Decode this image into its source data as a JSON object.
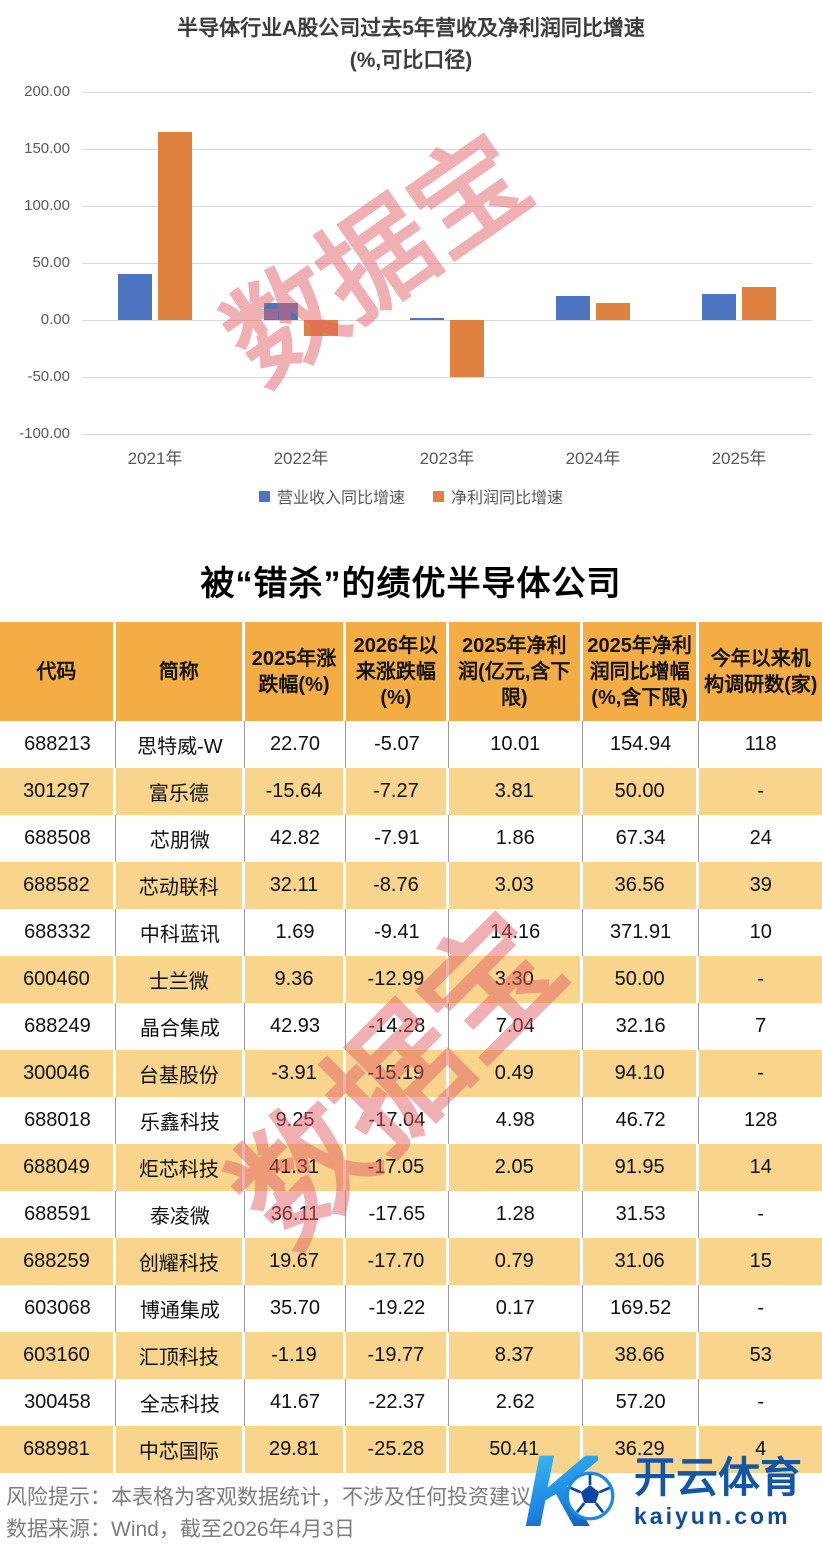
{
  "watermark": {
    "text": "数据宝",
    "color": "rgba(226,96,102,0.5)"
  },
  "chart": {
    "title": "半导体行业A股公司过去5年营收及净利润同比增速",
    "subtitle": "(%,可比口径)"
  },
  "chart_data": {
    "type": "bar",
    "title": "半导体行业A股公司过去5年营收及净利润同比增速",
    "subtitle": "(%,可比口径)",
    "categories": [
      "2021年",
      "2022年",
      "2023年",
      "2024年",
      "2025年"
    ],
    "series": [
      {
        "name": "营业收入同比增速",
        "color": "#4E73C0",
        "values": [
          40,
          15,
          1.5,
          21,
          23
        ]
      },
      {
        "name": "净利润同比增速",
        "color": "#E0823F",
        "values": [
          165,
          -14,
          -50,
          15,
          29
        ]
      }
    ],
    "y_ticks": [
      "200.00",
      "150.00",
      "100.00",
      "50.00",
      "0.00",
      "-50.00",
      "-100.00"
    ],
    "ylim": [
      -100,
      200
    ],
    "xlabel": "",
    "ylabel": "",
    "grid": true,
    "legend_position": "bottom"
  },
  "table": {
    "title": "被“错杀”的绩优半导体公司",
    "headers": [
      "代码",
      "简称",
      "2025年涨跌幅(%)",
      "2026年以来涨跌幅(%)",
      "2025年净利润(亿元,含下限)",
      "2025年净利润同比增幅(%,含下限)",
      "今年以来机构调研数(家)"
    ],
    "rows": [
      [
        "688213",
        "思特威-W",
        "22.70",
        "-5.07",
        "10.01",
        "154.94",
        "118"
      ],
      [
        "301297",
        "富乐德",
        "-15.64",
        "-7.27",
        "3.81",
        "50.00",
        "-"
      ],
      [
        "688508",
        "芯朋微",
        "42.82",
        "-7.91",
        "1.86",
        "67.34",
        "24"
      ],
      [
        "688582",
        "芯动联科",
        "32.11",
        "-8.76",
        "3.03",
        "36.56",
        "39"
      ],
      [
        "688332",
        "中科蓝讯",
        "1.69",
        "-9.41",
        "14.16",
        "371.91",
        "10"
      ],
      [
        "600460",
        "士兰微",
        "9.36",
        "-12.99",
        "3.30",
        "50.00",
        "-"
      ],
      [
        "688249",
        "晶合集成",
        "42.93",
        "-14.28",
        "7.04",
        "32.16",
        "7"
      ],
      [
        "300046",
        "台基股份",
        "-3.91",
        "-15.19",
        "0.49",
        "94.10",
        "-"
      ],
      [
        "688018",
        "乐鑫科技",
        "9.25",
        "-17.04",
        "4.98",
        "46.72",
        "128"
      ],
      [
        "688049",
        "炬芯科技",
        "41.31",
        "-17.05",
        "2.05",
        "91.95",
        "14"
      ],
      [
        "688591",
        "泰凌微",
        "36.11",
        "-17.65",
        "1.28",
        "31.53",
        "-"
      ],
      [
        "688259",
        "创耀科技",
        "19.67",
        "-17.70",
        "0.79",
        "31.06",
        "15"
      ],
      [
        "603068",
        "博通集成",
        "35.70",
        "-19.22",
        "0.17",
        "169.52",
        "-"
      ],
      [
        "603160",
        "汇顶科技",
        "-1.19",
        "-19.77",
        "8.37",
        "38.66",
        "53"
      ],
      [
        "300458",
        "全志科技",
        "41.67",
        "-22.37",
        "2.62",
        "57.20",
        "-"
      ],
      [
        "688981",
        "中芯国际",
        "29.81",
        "-25.28",
        "50.41",
        "36.29",
        "4"
      ]
    ]
  },
  "footer": {
    "risk_note": "风险提示：本表格为客观数据统计，不涉及任何投资建议",
    "source_note": "数据来源：Wind，截至2026年4月3日",
    "logo_letter": "K",
    "logo_title": "开云体育",
    "logo_domain": "kaiyun.com"
  },
  "colors": {
    "bar_blue": "#4E73C0",
    "bar_orange": "#E0823F",
    "table_header_bg": "#F4AC44",
    "table_alt_row_bg": "#F8D48C",
    "watermark_pink": "rgba(226,96,102,0.5)",
    "logo_navy": "#1256A8"
  }
}
